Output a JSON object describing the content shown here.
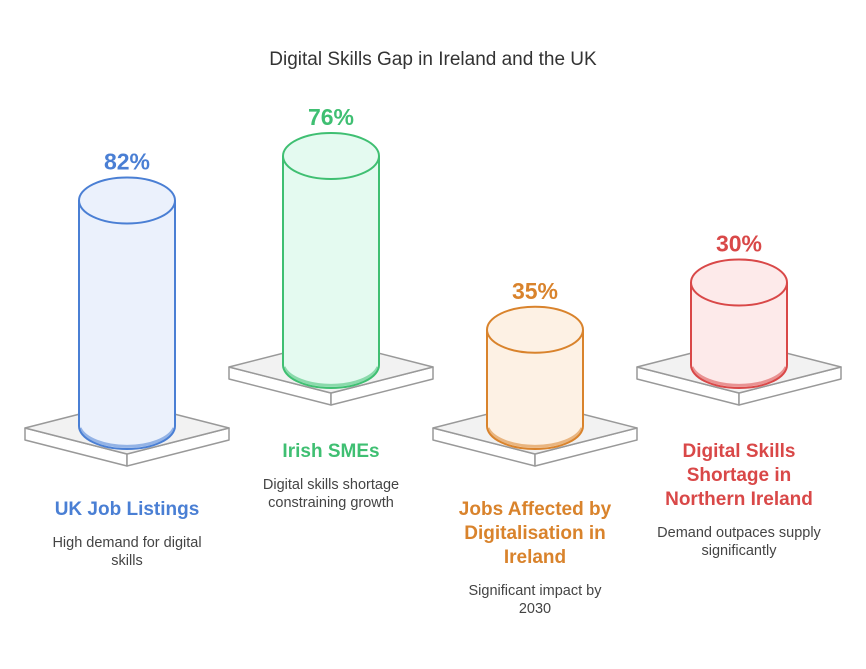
{
  "title": "Digital Skills Gap in Ireland and the UK",
  "chart_data": {
    "type": "bar",
    "title": "Digital Skills Gap in Ireland and the UK",
    "categories": [
      "UK Job Listings",
      "Irish SMEs",
      "Jobs Affected by Digitalisation in Ireland",
      "Digital Skills Shortage in Northern Ireland"
    ],
    "values": [
      82,
      76,
      35,
      30
    ],
    "value_labels": [
      "82%",
      "76%",
      "35%",
      "30%"
    ],
    "descriptions": [
      "High demand for digital skills",
      "Digital skills shortage constraining growth",
      "Significant impact by 2030",
      "Demand outpaces supply significantly"
    ],
    "colors": [
      {
        "stroke": "#4a7fd4",
        "fill": "#ebf1fc"
      },
      {
        "stroke": "#3fbf72",
        "fill": "#e4faf0"
      },
      {
        "stroke": "#d9832c",
        "fill": "#fdf1e4"
      },
      {
        "stroke": "#d94848",
        "fill": "#fdeaea"
      }
    ],
    "platform_colors": {
      "stroke": "#999999",
      "top": "#f2f2f2",
      "side": "#ffffff"
    }
  }
}
